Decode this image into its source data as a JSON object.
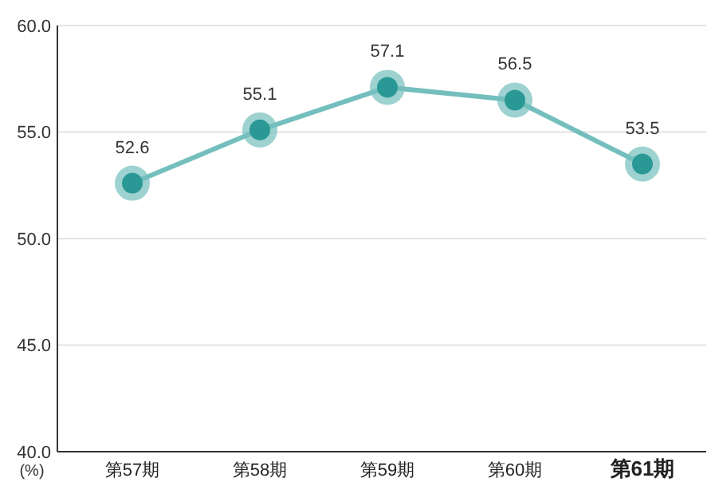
{
  "chart_data": {
    "type": "line",
    "ylabel": "(%)",
    "categories": [
      "第57期",
      "第58期",
      "第59期",
      "第60期",
      "第61期"
    ],
    "series": [
      {
        "color": "#74bfbd",
        "values": [
          52.6,
          55.1,
          57.1,
          56.5,
          53.5
        ]
      }
    ],
    "ylim": [
      40,
      60
    ],
    "yticks": [
      {
        "value": 40,
        "label": "40.0"
      },
      {
        "value": 45,
        "label": "45.0"
      },
      {
        "value": 50,
        "label": "50.0"
      },
      {
        "value": 55,
        "label": "55.0"
      },
      {
        "value": 60,
        "label": "60.0"
      }
    ],
    "grid": "y",
    "marker": "circle",
    "line_style": "solid",
    "data_labels": true
  }
}
